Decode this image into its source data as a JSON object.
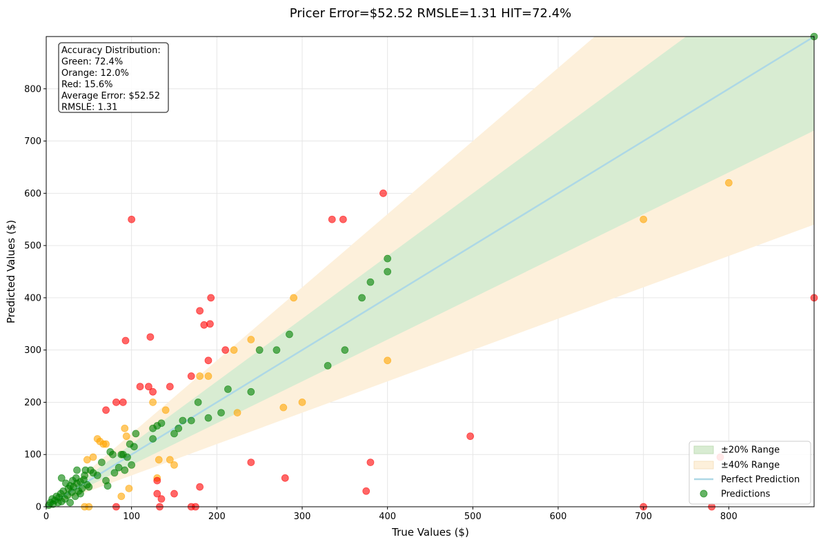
{
  "chart_data": {
    "type": "scatter",
    "title": "Pricer Error=$52.52  RMSLE=1.31  HIT=72.4%",
    "xlabel": "True Values ($)",
    "ylabel": "Predicted Values ($)",
    "xlim": [
      0,
      900
    ],
    "ylim": [
      0,
      900
    ],
    "x_ticks": [
      "0",
      "100",
      "200",
      "300",
      "400",
      "500",
      "600",
      "700",
      "800"
    ],
    "y_ticks": [
      "0",
      "100",
      "200",
      "300",
      "400",
      "500",
      "600",
      "700",
      "800"
    ],
    "grid": true,
    "legend_position": "bottom-right",
    "legend": [
      "±20% Range",
      "±40% Range",
      "Perfect Prediction",
      "Predictions"
    ],
    "info_box": [
      "Accuracy Distribution:",
      "Green: 72.4%",
      "Orange: 12.0%",
      "Red: 15.6%",
      "Average Error: $52.52",
      "RMSLE: 1.31"
    ],
    "bands": {
      "inner_fraction": 0.2,
      "outer_fraction": 0.4
    },
    "colors": {
      "green": "#008000",
      "orange": "#ffa500",
      "red": "#ff0000",
      "perfect_line": "#add8e6",
      "band20": "#d8ecd2",
      "band40": "#fdf0db"
    },
    "series": [
      {
        "color": "green",
        "points": [
          [
            3,
            3
          ],
          [
            5,
            8
          ],
          [
            7,
            15
          ],
          [
            8,
            5
          ],
          [
            10,
            12
          ],
          [
            12,
            20
          ],
          [
            14,
            8
          ],
          [
            15,
            18
          ],
          [
            17,
            25
          ],
          [
            18,
            10
          ],
          [
            20,
            30
          ],
          [
            22,
            15
          ],
          [
            23,
            45
          ],
          [
            25,
            22
          ],
          [
            26,
            35
          ],
          [
            28,
            40
          ],
          [
            30,
            28
          ],
          [
            31,
            50
          ],
          [
            32,
            38
          ],
          [
            34,
            20
          ],
          [
            35,
            55
          ],
          [
            36,
            45
          ],
          [
            38,
            30
          ],
          [
            40,
            48
          ],
          [
            42,
            35
          ],
          [
            44,
            52
          ],
          [
            45,
            60
          ],
          [
            48,
            42
          ],
          [
            50,
            38
          ],
          [
            52,
            70
          ],
          [
            55,
            65
          ],
          [
            60,
            60
          ],
          [
            65,
            85
          ],
          [
            70,
            50
          ],
          [
            72,
            40
          ],
          [
            75,
            105
          ],
          [
            78,
            100
          ],
          [
            80,
            65
          ],
          [
            85,
            75
          ],
          [
            88,
            100
          ],
          [
            90,
            100
          ],
          [
            92,
            70
          ],
          [
            95,
            95
          ],
          [
            98,
            120
          ],
          [
            100,
            80
          ],
          [
            103,
            115
          ],
          [
            105,
            140
          ],
          [
            125,
            150
          ],
          [
            125,
            130
          ],
          [
            130,
            155
          ],
          [
            135,
            160
          ],
          [
            150,
            140
          ],
          [
            155,
            150
          ],
          [
            160,
            165
          ],
          [
            170,
            165
          ],
          [
            178,
            200
          ],
          [
            190,
            170
          ],
          [
            205,
            180
          ],
          [
            213,
            225
          ],
          [
            240,
            220
          ],
          [
            250,
            300
          ],
          [
            270,
            300
          ],
          [
            285,
            330
          ],
          [
            330,
            270
          ],
          [
            350,
            300
          ],
          [
            370,
            400
          ],
          [
            380,
            430
          ],
          [
            400,
            450
          ],
          [
            400,
            475
          ],
          [
            900,
            900
          ],
          [
            18,
            55
          ],
          [
            28,
            8
          ],
          [
            40,
            25
          ],
          [
            46,
            70
          ],
          [
            36,
            70
          ]
        ]
      },
      {
        "color": "orange",
        "points": [
          [
            45,
            0
          ],
          [
            48,
            90
          ],
          [
            50,
            0
          ],
          [
            55,
            95
          ],
          [
            60,
            130
          ],
          [
            63,
            125
          ],
          [
            67,
            120
          ],
          [
            70,
            120
          ],
          [
            88,
            20
          ],
          [
            92,
            150
          ],
          [
            94,
            135
          ],
          [
            97,
            35
          ],
          [
            125,
            200
          ],
          [
            130,
            55
          ],
          [
            132,
            90
          ],
          [
            140,
            185
          ],
          [
            145,
            90
          ],
          [
            150,
            80
          ],
          [
            180,
            250
          ],
          [
            190,
            250
          ],
          [
            220,
            300
          ],
          [
            224,
            180
          ],
          [
            240,
            320
          ],
          [
            278,
            190
          ],
          [
            290,
            400
          ],
          [
            300,
            200
          ],
          [
            400,
            280
          ],
          [
            700,
            550
          ],
          [
            800,
            620
          ]
        ]
      },
      {
        "color": "red",
        "points": [
          [
            70,
            185
          ],
          [
            82,
            0
          ],
          [
            82,
            200
          ],
          [
            90,
            200
          ],
          [
            93,
            318
          ],
          [
            100,
            550
          ],
          [
            110,
            230
          ],
          [
            120,
            230
          ],
          [
            122,
            325
          ],
          [
            125,
            220
          ],
          [
            130,
            50
          ],
          [
            130,
            25
          ],
          [
            133,
            0
          ],
          [
            135,
            15
          ],
          [
            145,
            230
          ],
          [
            150,
            25
          ],
          [
            170,
            250
          ],
          [
            170,
            0
          ],
          [
            175,
            0
          ],
          [
            180,
            375
          ],
          [
            180,
            38
          ],
          [
            185,
            348
          ],
          [
            190,
            280
          ],
          [
            192,
            350
          ],
          [
            193,
            400
          ],
          [
            210,
            300
          ],
          [
            240,
            85
          ],
          [
            280,
            55
          ],
          [
            335,
            550
          ],
          [
            348,
            550
          ],
          [
            375,
            30
          ],
          [
            380,
            85
          ],
          [
            395,
            600
          ],
          [
            497,
            135
          ],
          [
            700,
            0
          ],
          [
            780,
            0
          ],
          [
            790,
            95
          ],
          [
            900,
            400
          ]
        ]
      }
    ]
  }
}
